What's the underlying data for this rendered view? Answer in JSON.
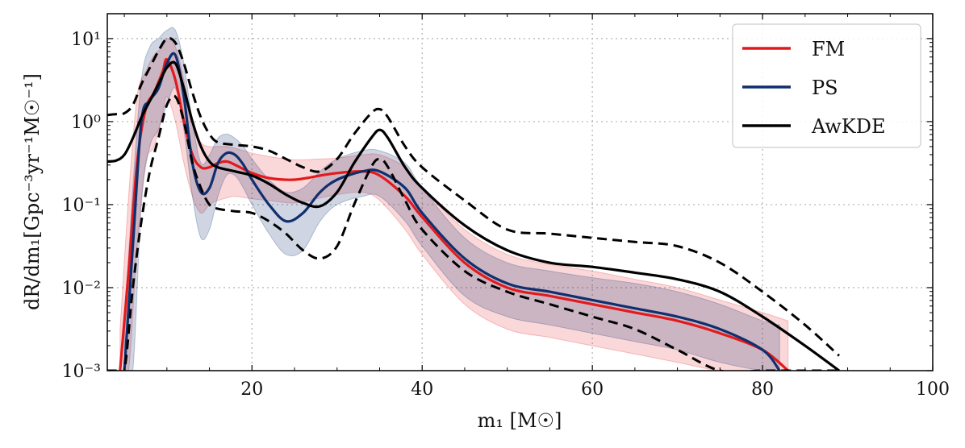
{
  "chart_data": {
    "type": "line",
    "title": "",
    "xlabel": "m₁ [M☉]",
    "ylabel": "dR/dm₁[Gpc⁻³yr⁻¹M☉⁻¹]",
    "xlim": [
      3,
      100
    ],
    "ylim_log10": [
      -3,
      1.3
    ],
    "yscale": "log",
    "grid": true,
    "legend_position": "top-right",
    "x_ticks": [
      20,
      40,
      60,
      80,
      100
    ],
    "y_ticks_log10": [
      -3,
      -2,
      -1,
      0,
      1
    ],
    "y_tick_labels": [
      "10⁻³",
      "10⁻²",
      "10⁻¹",
      "10⁰",
      "10¹"
    ],
    "legend": [
      {
        "name": "FM",
        "color": "#e31a1c",
        "style": "solid"
      },
      {
        "name": "PS",
        "color": "#0f2f6e",
        "style": "solid"
      },
      {
        "name": "AwKDE",
        "color": "#000000",
        "style": "solid"
      }
    ],
    "series": [
      {
        "name": "FM",
        "color": "#e31a1c",
        "x": [
          4.5,
          5.5,
          6.5,
          7.5,
          8.5,
          9.5,
          10,
          11,
          12,
          13,
          14,
          15,
          16,
          17,
          18,
          20,
          22,
          25,
          28,
          30,
          33,
          35,
          38,
          40,
          45,
          50,
          55,
          60,
          65,
          70,
          75,
          80,
          83
        ],
        "log10y": [
          -3,
          -1.8,
          -0.5,
          0.15,
          0.35,
          0.6,
          0.75,
          0.5,
          0.0,
          -0.4,
          -0.55,
          -0.55,
          -0.5,
          -0.48,
          -0.52,
          -0.62,
          -0.68,
          -0.7,
          -0.65,
          -0.62,
          -0.6,
          -0.65,
          -0.9,
          -1.15,
          -1.7,
          -2.0,
          -2.1,
          -2.2,
          -2.3,
          -2.4,
          -2.55,
          -2.75,
          -3
        ],
        "band_upper": [
          -2.5,
          -0.9,
          0.3,
          0.6,
          0.8,
          0.9,
          1.0,
          0.9,
          0.5,
          0.0,
          -0.25,
          -0.3,
          -0.3,
          -0.3,
          -0.32,
          -0.38,
          -0.42,
          -0.46,
          -0.45,
          -0.44,
          -0.4,
          -0.4,
          -0.55,
          -0.8,
          -1.3,
          -1.6,
          -1.72,
          -1.8,
          -1.9,
          -2.0,
          -2.15,
          -2.3,
          -2.4
        ],
        "band_lower": [
          -3,
          -3,
          -1.5,
          -0.5,
          -0.3,
          0.1,
          0.3,
          0.0,
          -0.5,
          -0.9,
          -1.1,
          -1.0,
          -0.95,
          -0.92,
          -0.9,
          -0.93,
          -0.95,
          -0.98,
          -0.92,
          -0.88,
          -0.85,
          -0.95,
          -1.3,
          -1.6,
          -2.2,
          -2.5,
          -2.6,
          -2.7,
          -2.8,
          -2.9,
          -3.0,
          -3.0,
          -3.0
        ]
      },
      {
        "name": "PS",
        "color": "#0f2f6e",
        "x": [
          5,
          6,
          7,
          8,
          9,
          10,
          11,
          12,
          13,
          14,
          15,
          16,
          17,
          18,
          19,
          20,
          22,
          24,
          26,
          28,
          30,
          33,
          35,
          38,
          40,
          45,
          50,
          55,
          60,
          65,
          70,
          75,
          80,
          82
        ],
        "log10y": [
          -3,
          -1.5,
          0.0,
          0.25,
          0.4,
          0.7,
          0.8,
          0.3,
          -0.5,
          -0.85,
          -0.8,
          -0.5,
          -0.38,
          -0.4,
          -0.52,
          -0.7,
          -1.0,
          -1.2,
          -1.1,
          -0.85,
          -0.7,
          -0.6,
          -0.6,
          -0.8,
          -1.1,
          -1.65,
          -1.95,
          -2.05,
          -2.15,
          -2.25,
          -2.35,
          -2.5,
          -2.75,
          -3
        ],
        "band_upper": [
          -2.5,
          -0.8,
          0.5,
          0.9,
          1.0,
          1.1,
          1.1,
          0.7,
          0.0,
          -0.5,
          -0.4,
          -0.2,
          -0.15,
          -0.2,
          -0.3,
          -0.45,
          -0.7,
          -0.85,
          -0.8,
          -0.6,
          -0.45,
          -0.35,
          -0.35,
          -0.5,
          -0.8,
          -1.4,
          -1.7,
          -1.8,
          -1.88,
          -1.95,
          -2.05,
          -2.2,
          -2.4,
          -2.45
        ],
        "band_lower": [
          -3,
          -3,
          -1.0,
          -0.3,
          -0.1,
          0.2,
          0.4,
          -0.1,
          -0.9,
          -1.4,
          -1.3,
          -0.9,
          -0.65,
          -0.65,
          -0.8,
          -1.0,
          -1.35,
          -1.6,
          -1.55,
          -1.2,
          -1.0,
          -0.9,
          -0.9,
          -1.2,
          -1.5,
          -2.1,
          -2.35,
          -2.45,
          -2.55,
          -2.65,
          -2.75,
          -2.9,
          -3.0,
          -3.0
        ]
      },
      {
        "name": "AwKDE",
        "color": "#000000",
        "x": [
          3,
          4,
          5,
          6,
          7,
          8,
          9,
          10,
          11,
          12,
          13,
          14,
          15,
          16,
          18,
          20,
          22,
          24,
          26,
          28,
          30,
          32,
          34,
          35,
          36,
          38,
          40,
          45,
          50,
          55,
          60,
          65,
          70,
          75,
          80,
          85,
          89
        ],
        "log10y": [
          -0.48,
          -0.47,
          -0.4,
          -0.2,
          0.05,
          0.25,
          0.45,
          0.65,
          0.7,
          0.4,
          0.0,
          -0.3,
          -0.48,
          -0.55,
          -0.6,
          -0.65,
          -0.75,
          -0.88,
          -0.98,
          -1.02,
          -0.85,
          -0.5,
          -0.2,
          -0.1,
          -0.2,
          -0.55,
          -0.8,
          -1.25,
          -1.55,
          -1.7,
          -1.75,
          -1.82,
          -1.9,
          -2.05,
          -2.35,
          -2.7,
          -3
        ],
        "band_upper": [
          0.08,
          0.09,
          0.1,
          0.2,
          0.45,
          0.65,
          0.85,
          1.0,
          0.95,
          0.7,
          0.35,
          0.05,
          -0.15,
          -0.25,
          -0.28,
          -0.3,
          -0.35,
          -0.45,
          -0.55,
          -0.6,
          -0.45,
          -0.15,
          0.1,
          0.15,
          0.05,
          -0.3,
          -0.55,
          -0.95,
          -1.3,
          -1.35,
          -1.4,
          -1.45,
          -1.5,
          -1.7,
          -2.05,
          -2.45,
          -2.82
        ],
        "band_lower": [
          -3,
          -3,
          -3,
          -2.0,
          -1.2,
          -0.6,
          -0.2,
          0.2,
          0.3,
          0.0,
          -0.5,
          -0.8,
          -1.0,
          -1.05,
          -1.08,
          -1.1,
          -1.2,
          -1.35,
          -1.55,
          -1.65,
          -1.5,
          -1.0,
          -0.55,
          -0.45,
          -0.55,
          -0.95,
          -1.3,
          -1.8,
          -2.05,
          -2.2,
          -2.35,
          -2.5,
          -2.75,
          -3,
          -3,
          -3,
          -3
        ]
      }
    ]
  }
}
